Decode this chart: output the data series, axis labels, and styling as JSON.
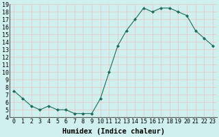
{
  "x": [
    0,
    1,
    2,
    3,
    4,
    5,
    6,
    7,
    8,
    9,
    10,
    11,
    12,
    13,
    14,
    15,
    16,
    17,
    18,
    19,
    20,
    21,
    22,
    23
  ],
  "y": [
    7.5,
    6.5,
    5.5,
    5.0,
    5.5,
    5.0,
    5.0,
    4.5,
    4.5,
    4.5,
    6.5,
    10.0,
    13.5,
    15.5,
    17.0,
    18.5,
    18.0,
    18.5,
    18.5,
    18.0,
    17.5,
    15.5,
    14.5,
    13.5
  ],
  "xlabel": "Humidex (Indice chaleur)",
  "line_color": "#1a6b5a",
  "marker": "D",
  "marker_size": 2.0,
  "bg_color": "#cff0ee",
  "grid_color": "#e8c8c8",
  "ylim": [
    4,
    19
  ],
  "xlim": [
    -0.5,
    23.5
  ],
  "yticks": [
    4,
    5,
    6,
    7,
    8,
    9,
    10,
    11,
    12,
    13,
    14,
    15,
    16,
    17,
    18,
    19
  ],
  "xticks": [
    0,
    1,
    2,
    3,
    4,
    5,
    6,
    7,
    8,
    9,
    10,
    11,
    12,
    13,
    14,
    15,
    16,
    17,
    18,
    19,
    20,
    21,
    22,
    23
  ],
  "tick_fontsize": 6.0,
  "xlabel_fontsize": 7.5
}
